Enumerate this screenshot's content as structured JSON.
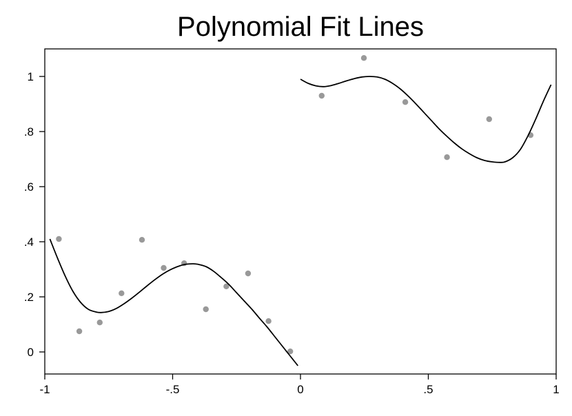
{
  "chart_data": {
    "type": "scatter",
    "title": "Polynomial Fit Lines",
    "xlabel": "",
    "ylabel": "",
    "xlim": [
      -1.0,
      1.0
    ],
    "ylim": [
      -0.08,
      1.1
    ],
    "grid": false,
    "legend": "none",
    "x_ticks": [
      {
        "value": -1,
        "label": "-1"
      },
      {
        "value": -0.5,
        "label": "-.5"
      },
      {
        "value": 0,
        "label": "0"
      },
      {
        "value": 0.5,
        "label": ".5"
      },
      {
        "value": 1,
        "label": "1"
      }
    ],
    "y_ticks": [
      {
        "value": 0,
        "label": "0"
      },
      {
        "value": 0.2,
        "label": ".2"
      },
      {
        "value": 0.4,
        "label": ".4"
      },
      {
        "value": 0.6,
        "label": ".6"
      },
      {
        "value": 0.8,
        "label": ".8"
      },
      {
        "value": 1,
        "label": "1"
      }
    ],
    "scatter_color": "#999999",
    "line_color": "#000000",
    "points": [
      {
        "x": -0.945,
        "y": 0.41
      },
      {
        "x": -0.865,
        "y": 0.075
      },
      {
        "x": -0.785,
        "y": 0.107
      },
      {
        "x": -0.7,
        "y": 0.213
      },
      {
        "x": -0.62,
        "y": 0.407
      },
      {
        "x": -0.535,
        "y": 0.305
      },
      {
        "x": -0.455,
        "y": 0.322
      },
      {
        "x": -0.37,
        "y": 0.155
      },
      {
        "x": -0.29,
        "y": 0.238
      },
      {
        "x": -0.205,
        "y": 0.285
      },
      {
        "x": -0.125,
        "y": 0.112
      },
      {
        "x": -0.04,
        "y": 0.002
      },
      {
        "x": 0.083,
        "y": 0.93
      },
      {
        "x": 0.248,
        "y": 1.067
      },
      {
        "x": 0.41,
        "y": 0.907
      },
      {
        "x": 0.573,
        "y": 0.707
      },
      {
        "x": 0.738,
        "y": 0.845
      },
      {
        "x": 0.9,
        "y": 0.787
      }
    ],
    "fit_lines": [
      {
        "x": [
          -0.98,
          -0.95,
          -0.92,
          -0.89,
          -0.86,
          -0.83,
          -0.8,
          -0.78,
          -0.75,
          -0.72,
          -0.69,
          -0.66,
          -0.63,
          -0.6,
          -0.57,
          -0.54,
          -0.51,
          -0.48,
          -0.45,
          -0.42,
          -0.4,
          -0.37,
          -0.34,
          -0.31,
          -0.28,
          -0.25,
          -0.22,
          -0.19,
          -0.16,
          -0.13,
          -0.1,
          -0.07,
          -0.04,
          -0.01
        ],
        "y": [
          0.41,
          0.34,
          0.275,
          0.22,
          0.18,
          0.155,
          0.145,
          0.143,
          0.147,
          0.158,
          0.175,
          0.195,
          0.217,
          0.24,
          0.262,
          0.282,
          0.298,
          0.31,
          0.318,
          0.32,
          0.318,
          0.31,
          0.293,
          0.27,
          0.245,
          0.215,
          0.185,
          0.155,
          0.122,
          0.09,
          0.055,
          0.02,
          -0.015,
          -0.05
        ]
      },
      {
        "x": [
          0.0,
          0.03,
          0.06,
          0.09,
          0.12,
          0.15,
          0.18,
          0.21,
          0.24,
          0.27,
          0.3,
          0.33,
          0.36,
          0.39,
          0.42,
          0.45,
          0.48,
          0.51,
          0.54,
          0.57,
          0.6,
          0.63,
          0.66,
          0.69,
          0.72,
          0.75,
          0.78,
          0.8,
          0.83,
          0.86,
          0.89,
          0.92,
          0.95,
          0.98
        ],
        "y": [
          0.99,
          0.975,
          0.966,
          0.963,
          0.967,
          0.975,
          0.984,
          0.992,
          0.998,
          1.0,
          0.998,
          0.99,
          0.975,
          0.955,
          0.93,
          0.902,
          0.872,
          0.842,
          0.812,
          0.785,
          0.76,
          0.738,
          0.72,
          0.705,
          0.695,
          0.69,
          0.688,
          0.69,
          0.705,
          0.735,
          0.785,
          0.845,
          0.91,
          0.97
        ]
      }
    ]
  }
}
